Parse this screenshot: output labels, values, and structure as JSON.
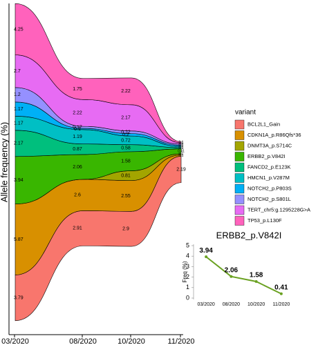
{
  "chart_data": [
    {
      "type": "streamgraph",
      "y_label": "Allele frequency (%)",
      "legend_title": "variant",
      "x": [
        "03/2020",
        "08/2020",
        "10/2020",
        "11/2020"
      ],
      "series": [
        {
          "name": "BCL2L1_Gain",
          "color": "#F8766D",
          "values": [
            3.79,
            2.91,
            2.9,
            2.19
          ]
        },
        {
          "name": "CDKN1A_p.R86Qfs*36",
          "color": "#D89000",
          "values": [
            5.87,
            2.6,
            2.55,
            0.1
          ]
        },
        {
          "name": "DNMT3A_p.S714C",
          "color": "#A3A500",
          "values": [
            0,
            0,
            0.81,
            0.1
          ]
        },
        {
          "name": "ERBB2_p.V842I",
          "color": "#39B600",
          "values": [
            3.94,
            2.06,
            1.58,
            0.41
          ]
        },
        {
          "name": "FANCD2_p.E123K",
          "color": "#00BF7D",
          "values": [
            2.17,
            0.87,
            0.58,
            0.1
          ]
        },
        {
          "name": "HMCN1_p.V287M",
          "color": "#00BFC4",
          "values": [
            1.17,
            1.19,
            0.72,
            0.1
          ]
        },
        {
          "name": "NOTCH2_p.P803S",
          "color": "#00B0F6",
          "values": [
            1.17,
            0.1,
            0.2,
            0.1
          ]
        },
        {
          "name": "NOTCH2_p.S801L",
          "color": "#9590FF",
          "values": [
            1.2,
            0.17,
            0.22,
            0.1
          ]
        },
        {
          "name": "TERT_chr5:g.1295228G>A",
          "color": "#E76BF3",
          "values": [
            2.7,
            2.22,
            2.17,
            0.1
          ]
        },
        {
          "name": "TP53_p.L130F",
          "color": "#FF62BC",
          "values": [
            4.25,
            1.75,
            2.22,
            0.1
          ]
        }
      ]
    },
    {
      "type": "line",
      "title": "ERBB2_p.V842I",
      "y_label": "Freq (%)",
      "categories": [
        "03/2020",
        "08/2020",
        "10/2020",
        "11/2020"
      ],
      "values": [
        3.94,
        2.06,
        1.58,
        0.41
      ],
      "color": "#6AA121",
      "ylim": [
        0,
        5
      ],
      "yticks": [
        0,
        1,
        2,
        3,
        4,
        5
      ]
    }
  ]
}
